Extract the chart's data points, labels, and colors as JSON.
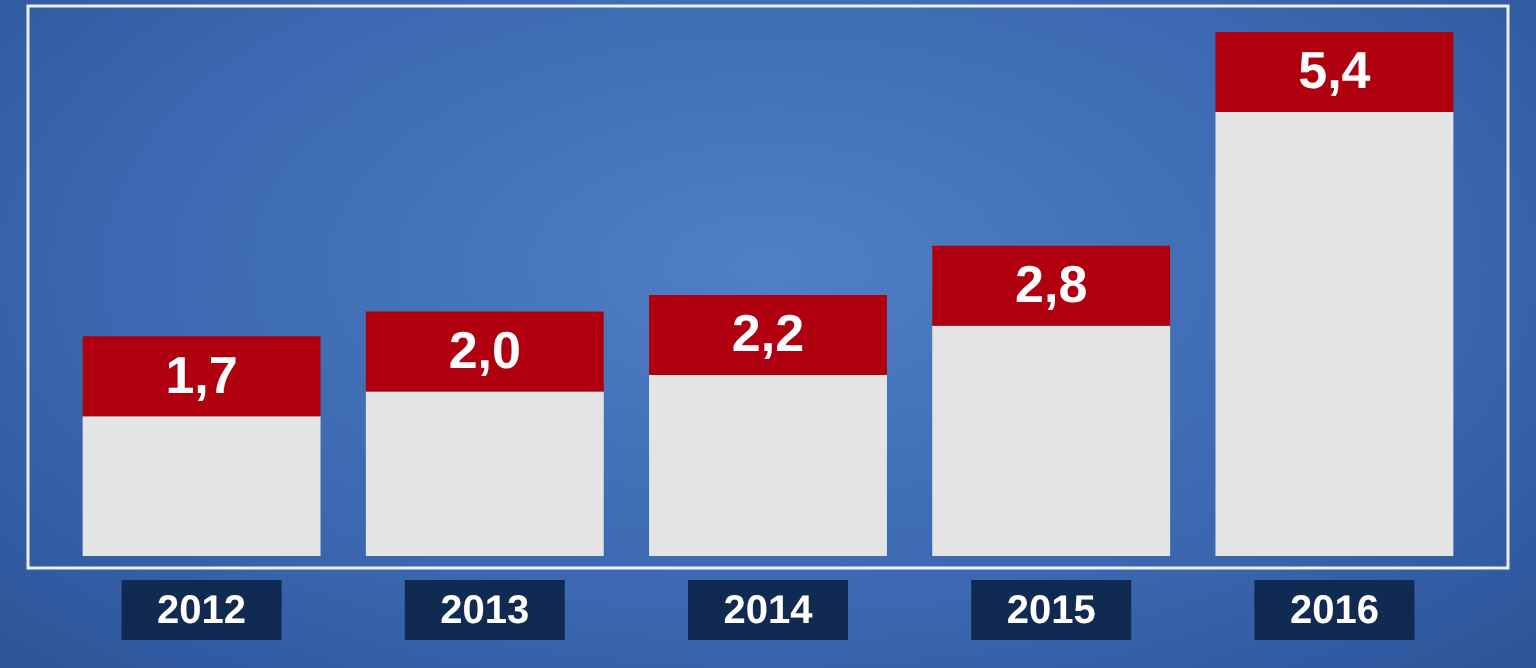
{
  "chart_data": {
    "type": "bar",
    "categories": [
      "2012",
      "2013",
      "2014",
      "2015",
      "2016"
    ],
    "values": [
      1.7,
      2.0,
      2.2,
      2.8,
      5.4
    ],
    "value_labels": [
      "1,7",
      "2,0",
      "2,2",
      "2,8",
      "5,4"
    ],
    "color": "#e4e4e4"
  }
}
